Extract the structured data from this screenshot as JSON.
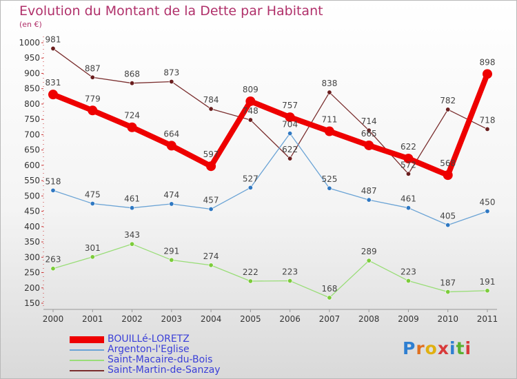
{
  "title": "Evolution du Montant de la Dette par Habitant",
  "unit_label": "(en €)",
  "logo": {
    "text": "Proxiti",
    "letter_colors": [
      "#2e7fd1",
      "#e07020",
      "#e0b010",
      "#d83a3a",
      "#2e7fd1",
      "#5ab030",
      "#d83a3a"
    ]
  },
  "chart_data": {
    "type": "line",
    "title": "Evolution du Montant de la Dette par Habitant",
    "ylabel": "(en €)",
    "xlabel": "",
    "x": [
      "2000",
      "2001",
      "2002",
      "2003",
      "2004",
      "2005",
      "2006",
      "2007",
      "2008",
      "2009",
      "2010",
      "2011"
    ],
    "ylim": [
      150,
      1000
    ],
    "yticks": [
      150,
      200,
      250,
      300,
      350,
      400,
      450,
      500,
      550,
      600,
      650,
      700,
      750,
      800,
      850,
      900,
      950,
      1000
    ],
    "grid": false,
    "legend_position": "bottom-left",
    "series": [
      {
        "name": "BOUILLé-LORETZ",
        "color": "#ee0000",
        "values": [
          831,
          779,
          724,
          664,
          597,
          809,
          757,
          711,
          665,
          622,
          568,
          898
        ]
      },
      {
        "name": "Argenton-l'Eglise",
        "color": "#6aa3d5",
        "values": [
          518,
          475,
          461,
          474,
          457,
          527,
          704,
          525,
          487,
          461,
          405,
          450
        ]
      },
      {
        "name": "Saint-Macaire-du-Bois",
        "color": "#99dd77",
        "values": [
          263,
          301,
          343,
          291,
          274,
          222,
          223,
          168,
          289,
          223,
          187,
          191
        ]
      },
      {
        "name": "Saint-Martin-de-Sanzay",
        "color": "#7a2e2e",
        "values": [
          981,
          887,
          868,
          873,
          784,
          748,
          622,
          838,
          714,
          572,
          782,
          718
        ]
      }
    ]
  }
}
